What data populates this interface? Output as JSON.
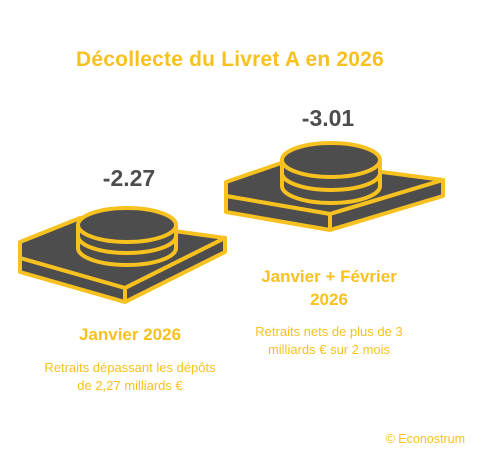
{
  "chart_data": {
    "type": "other",
    "title": "Décollecte du Livret A en 2026",
    "items": [
      {
        "value": -2.27,
        "label": "-2.27",
        "period": "Janvier 2026",
        "description": "Retraits dépassant les dépôts de 2,27 milliards €"
      },
      {
        "value": -3.01,
        "label": "-3.01",
        "period": "Janvier + Février 2026",
        "description": "Retraits nets de plus de 3 milliards € sur 2 mois"
      }
    ],
    "source": "© Econostrum"
  },
  "colors": {
    "accent": "#f7c11f",
    "dark": "#4d4d4d",
    "outline": "#f7c11f"
  }
}
